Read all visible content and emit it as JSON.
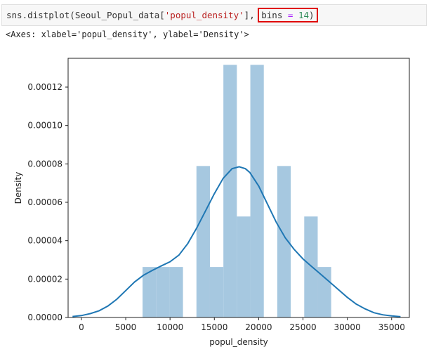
{
  "cell": {
    "code_prefix": "sns.distplot(Seoul_Popul_data[",
    "code_string": "'popul_density'",
    "code_mid": "], ",
    "code_bins_name": "bins",
    "code_eq": " = ",
    "code_bins_value": "14",
    "code_suffix": ")",
    "highlight_color": "#e00000",
    "output": "<Axes: xlabel='popul_density', ylabel='Density'>"
  },
  "chart_data": {
    "type": "bar",
    "xlabel": "popul_density",
    "ylabel": "Density",
    "xlim": [
      -1500,
      37000
    ],
    "ylim": [
      0,
      0.000135
    ],
    "xticks": [
      0,
      5000,
      10000,
      15000,
      20000,
      25000,
      30000,
      35000
    ],
    "yticks": [
      "0.00000",
      "0.00002",
      "0.00004",
      "0.00006",
      "0.00008",
      "0.00010",
      "0.00012"
    ],
    "ytick_values": [
      0,
      2e-05,
      4e-05,
      6e-05,
      8e-05,
      0.0001,
      0.00012
    ],
    "histogram": {
      "bins": 14,
      "bin_edges": [
        6900,
        8420,
        9940,
        11460,
        12980,
        14500,
        16020,
        17540,
        19060,
        20580,
        22100,
        23620,
        25140,
        26660,
        28180
      ],
      "density": [
        2.63e-05,
        2.63e-05,
        2.63e-05,
        0,
        7.89e-05,
        2.63e-05,
        0.0001316,
        5.26e-05,
        0.0001316,
        0,
        7.89e-05,
        0,
        5.26e-05,
        2.63e-05
      ],
      "color": "#a6c8e0"
    },
    "kde": {
      "color": "#1f77b4",
      "x": [
        -1000,
        0,
        1000,
        2000,
        3000,
        4000,
        5000,
        6000,
        7000,
        8000,
        9000,
        10000,
        11000,
        12000,
        13000,
        14000,
        15000,
        16000,
        17000,
        17800,
        18500,
        19000,
        20000,
        21000,
        22000,
        23000,
        24000,
        25000,
        26000,
        27000,
        28000,
        29000,
        30000,
        31000,
        32000,
        33000,
        34000,
        35000,
        36000
      ],
      "y": [
        5e-07,
        1e-06,
        2e-06,
        3.5e-06,
        6e-06,
        9.5e-06,
        1.4e-05,
        1.85e-05,
        2.2e-05,
        2.45e-05,
        2.68e-05,
        2.9e-05,
        3.25e-05,
        3.85e-05,
        4.65e-05,
        5.55e-05,
        6.45e-05,
        7.25e-05,
        7.75e-05,
        7.85e-05,
        7.75e-05,
        7.55e-05,
        6.85e-05,
        5.9e-05,
        4.95e-05,
        4.15e-05,
        3.55e-05,
        3.05e-05,
        2.65e-05,
        2.25e-05,
        1.85e-05,
        1.45e-05,
        1.05e-05,
        7e-06,
        4.5e-06,
        2.5e-06,
        1.4e-06,
        8e-07,
        4e-07
      ]
    }
  }
}
